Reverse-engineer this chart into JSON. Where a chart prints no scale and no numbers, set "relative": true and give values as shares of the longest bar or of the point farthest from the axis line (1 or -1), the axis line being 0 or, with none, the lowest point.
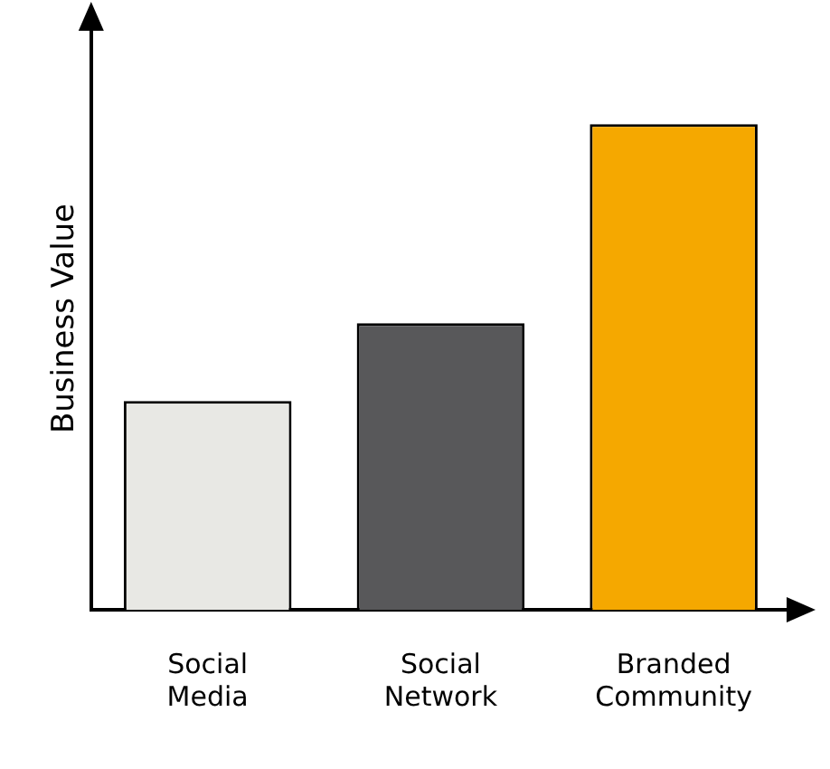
{
  "chart_data": {
    "type": "bar",
    "relative": true,
    "ylabel": "Business Value",
    "categories": [
      "Social Media",
      "Social Network",
      "Branded Community"
    ],
    "values": [
      0.43,
      0.59,
      1
    ],
    "colors": [
      "#e8e8e4",
      "#58585a",
      "#f5a800"
    ],
    "grid": false,
    "legend": false
  }
}
